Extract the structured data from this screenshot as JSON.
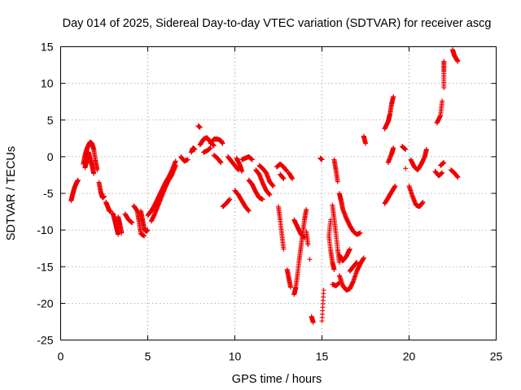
{
  "chart_data": {
    "type": "scatter",
    "title": "Day 014 of 2025, Sidereal Day-to-day VTEC variation (SDTVAR) for receiver ascg",
    "xlabel": "GPS time / hours",
    "ylabel": "SDTVAR / TECUs",
    "xlim": [
      0,
      25
    ],
    "ylim": [
      -25,
      15
    ],
    "xticks": [
      0,
      5,
      10,
      15,
      20,
      25
    ],
    "yticks": [
      -25,
      -20,
      -15,
      -10,
      -5,
      0,
      5,
      10,
      15
    ],
    "grid": true,
    "marker": "+",
    "color": "#ee0000",
    "segments": [
      [
        [
          0.6,
          -6.0
        ],
        [
          0.7,
          -5.0
        ],
        [
          0.8,
          -4.2
        ],
        [
          0.9,
          -3.6
        ],
        [
          1.0,
          -3.2
        ]
      ],
      [
        [
          1.3,
          -1.0
        ],
        [
          1.4,
          0.2
        ],
        [
          1.5,
          1.0
        ],
        [
          1.6,
          1.6
        ],
        [
          1.7,
          2.0
        ],
        [
          1.8,
          1.8
        ],
        [
          1.9,
          1.0
        ],
        [
          2.0,
          -0.5
        ],
        [
          2.1,
          -1.8
        ]
      ],
      [
        [
          1.4,
          -1.5
        ],
        [
          1.5,
          -0.5
        ],
        [
          1.6,
          0.6
        ],
        [
          1.7,
          -0.4
        ],
        [
          1.8,
          -1.2
        ],
        [
          1.9,
          -2.3
        ]
      ],
      [
        [
          2.2,
          -3.5
        ],
        [
          2.3,
          -4.8
        ],
        [
          2.4,
          -5.6
        ],
        [
          2.5,
          -5.4
        ]
      ],
      [
        [
          2.6,
          -6.2
        ],
        [
          2.7,
          -6.8
        ],
        [
          2.8,
          -7.4
        ],
        [
          2.9,
          -7.5
        ]
      ],
      [
        [
          3.0,
          -7.7
        ],
        [
          3.1,
          -8.6
        ],
        [
          3.2,
          -9.6
        ],
        [
          3.3,
          -10.6
        ]
      ],
      [
        [
          3.3,
          -8.2
        ],
        [
          3.4,
          -9.2
        ],
        [
          3.5,
          -10.4
        ]
      ],
      [
        [
          3.7,
          -7.8
        ],
        [
          3.9,
          -8.6
        ],
        [
          4.1,
          -9.0
        ]
      ],
      [
        [
          4.2,
          -6.7
        ],
        [
          4.4,
          -7.4
        ],
        [
          4.5,
          -8.8
        ],
        [
          4.6,
          -10.5
        ],
        [
          4.8,
          -10.8
        ]
      ],
      [
        [
          4.6,
          -7.4
        ],
        [
          4.7,
          -8.6
        ],
        [
          4.8,
          -9.8
        ],
        [
          4.9,
          -10.2
        ],
        [
          5.0,
          -10.0
        ]
      ],
      [
        [
          5.0,
          -8.0
        ],
        [
          5.2,
          -7.4
        ],
        [
          5.4,
          -6.6
        ],
        [
          5.6,
          -5.6
        ],
        [
          5.8,
          -4.6
        ],
        [
          6.0,
          -3.6
        ],
        [
          6.2,
          -2.8
        ],
        [
          6.4,
          -1.8
        ],
        [
          6.6,
          -0.6
        ]
      ],
      [
        [
          5.2,
          -8.8
        ],
        [
          5.4,
          -7.8
        ],
        [
          5.6,
          -6.6
        ],
        [
          5.8,
          -5.4
        ],
        [
          6.0,
          -4.2
        ],
        [
          6.2,
          -3.2
        ],
        [
          6.4,
          -2.4
        ],
        [
          6.6,
          -1.2
        ]
      ],
      [
        [
          6.9,
          0.0
        ],
        [
          7.1,
          -0.6
        ],
        [
          7.3,
          -0.4
        ]
      ],
      [
        [
          7.5,
          0.6
        ],
        [
          7.6,
          1.2
        ],
        [
          7.7,
          1.0
        ]
      ],
      [
        [
          7.9,
          4.2
        ],
        [
          8.0,
          4.0
        ]
      ],
      [
        [
          8.0,
          1.6
        ],
        [
          8.2,
          2.4
        ],
        [
          8.4,
          2.6
        ],
        [
          8.6,
          2.0
        ],
        [
          8.8,
          1.5
        ]
      ],
      [
        [
          8.2,
          0.6
        ],
        [
          8.4,
          0.8
        ],
        [
          8.6,
          1.2
        ]
      ],
      [
        [
          8.6,
          1.8
        ],
        [
          8.8,
          2.4
        ],
        [
          9.0,
          2.4
        ],
        [
          9.2,
          2.2
        ],
        [
          9.3,
          1.8
        ]
      ],
      [
        [
          8.8,
          0.2
        ],
        [
          9.0,
          -0.2
        ],
        [
          9.2,
          -0.8
        ]
      ],
      [
        [
          9.3,
          -6.8
        ],
        [
          9.5,
          -6.4
        ],
        [
          9.7,
          -5.8
        ]
      ],
      [
        [
          9.6,
          0.0
        ],
        [
          9.8,
          -0.6
        ],
        [
          10.0,
          -1.2
        ],
        [
          10.2,
          -1.8
        ]
      ],
      [
        [
          10.0,
          -4.6
        ],
        [
          10.2,
          -5.2
        ],
        [
          10.4,
          -6.0
        ],
        [
          10.6,
          -6.8
        ],
        [
          10.8,
          -7.4
        ]
      ],
      [
        [
          10.1,
          -0.2
        ],
        [
          10.3,
          -1.2
        ],
        [
          10.4,
          -2.0
        ]
      ],
      [
        [
          10.4,
          -0.4
        ],
        [
          10.6,
          -0.2
        ],
        [
          10.8,
          0.0
        ],
        [
          11.0,
          -0.4
        ]
      ],
      [
        [
          10.8,
          -3.2
        ],
        [
          11.0,
          -3.8
        ],
        [
          11.2,
          -4.8
        ],
        [
          11.4,
          -5.6
        ],
        [
          11.6,
          -5.8
        ]
      ],
      [
        [
          11.2,
          -1.8
        ],
        [
          11.4,
          -2.4
        ],
        [
          11.6,
          -3.6
        ],
        [
          11.8,
          -4.6
        ],
        [
          12.0,
          -5.2
        ]
      ],
      [
        [
          11.4,
          -1.2
        ],
        [
          11.6,
          -1.6
        ],
        [
          11.8,
          -2.2
        ],
        [
          12.0,
          -3.4
        ],
        [
          12.2,
          -4.0
        ]
      ],
      [
        [
          12.4,
          -1.4
        ],
        [
          12.6,
          -1.0
        ],
        [
          12.8,
          -1.4
        ],
        [
          13.0,
          -2.0
        ]
      ],
      [
        [
          12.6,
          -2.4
        ],
        [
          12.8,
          -3.0
        ]
      ],
      [
        [
          12.5,
          -6.8
        ],
        [
          12.6,
          -8.6
        ],
        [
          12.7,
          -10.6
        ],
        [
          12.8,
          -12.6
        ]
      ],
      [
        [
          13.0,
          -15.4
        ],
        [
          13.1,
          -16.6
        ],
        [
          13.2,
          -17.8
        ]
      ],
      [
        [
          13.1,
          -2.2
        ],
        [
          13.3,
          -3.0
        ]
      ],
      [
        [
          13.4,
          -8.6
        ],
        [
          13.6,
          -9.6
        ],
        [
          13.8,
          -10.6
        ],
        [
          14.0,
          -11.0
        ]
      ],
      [
        [
          13.4,
          -18.8
        ],
        [
          13.5,
          -17.8
        ],
        [
          13.6,
          -16.0
        ],
        [
          13.7,
          -14.0
        ],
        [
          13.8,
          -12.2
        ],
        [
          13.9,
          -10.4
        ],
        [
          14.0,
          -8.6
        ],
        [
          14.1,
          -7.2
        ]
      ],
      [
        [
          14.1,
          -10.2
        ],
        [
          14.2,
          -12.0
        ]
      ],
      [
        [
          14.3,
          -14.0
        ]
      ],
      [
        [
          14.4,
          -21.8
        ],
        [
          14.5,
          -22.6
        ]
      ],
      [
        [
          14.9,
          -0.2
        ],
        [
          15.0,
          -0.4
        ]
      ],
      [
        [
          15.0,
          -22.4
        ],
        [
          15.1,
          -18.2
        ]
      ],
      [
        [
          15.5,
          -8.6
        ],
        [
          15.4,
          -10.8
        ],
        [
          15.5,
          -12.8
        ],
        [
          15.6,
          -14.4
        ],
        [
          15.7,
          -15.4
        ]
      ],
      [
        [
          15.6,
          -6.6
        ],
        [
          15.7,
          -8.4
        ],
        [
          15.8,
          -10.4
        ],
        [
          15.9,
          -12.6
        ],
        [
          16.0,
          -14.4
        ]
      ],
      [
        [
          15.7,
          -0.4
        ],
        [
          15.8,
          -1.8
        ],
        [
          15.9,
          -3.4
        ]
      ],
      [
        [
          15.6,
          -17.4
        ],
        [
          15.8,
          -17.6
        ],
        [
          16.0,
          -17.2
        ]
      ],
      [
        [
          16.0,
          -5.0
        ],
        [
          16.1,
          -6.0
        ],
        [
          16.2,
          -7.2
        ],
        [
          16.4,
          -8.4
        ],
        [
          16.6,
          -9.4
        ],
        [
          16.8,
          -10.2
        ],
        [
          17.0,
          -10.6
        ],
        [
          17.2,
          -10.4
        ]
      ],
      [
        [
          16.0,
          -13.4
        ],
        [
          16.2,
          -14.2
        ],
        [
          16.4,
          -13.6
        ],
        [
          16.6,
          -12.6
        ]
      ],
      [
        [
          16.0,
          -16.2
        ],
        [
          16.2,
          -17.6
        ],
        [
          16.4,
          -18.2
        ],
        [
          16.6,
          -18.0
        ],
        [
          16.8,
          -17.0
        ],
        [
          17.0,
          -15.6
        ],
        [
          17.2,
          -14.6
        ],
        [
          17.4,
          -13.8
        ]
      ],
      [
        [
          16.6,
          -15.6
        ],
        [
          16.8,
          -15.0
        ],
        [
          17.0,
          -14.4
        ]
      ],
      [
        [
          17.4,
          2.8
        ],
        [
          17.5,
          1.8
        ]
      ],
      [
        [
          18.6,
          -6.4
        ],
        [
          18.8,
          -5.6
        ],
        [
          19.0,
          -4.8
        ],
        [
          19.2,
          -4.0
        ]
      ],
      [
        [
          18.6,
          3.8
        ],
        [
          18.8,
          4.8
        ],
        [
          18.9,
          5.8
        ],
        [
          19.0,
          7.2
        ],
        [
          19.1,
          8.2
        ]
      ],
      [
        [
          18.8,
          -0.8
        ],
        [
          19.0,
          0.4
        ],
        [
          19.1,
          1.2
        ]
      ],
      [
        [
          19.6,
          1.4
        ],
        [
          19.8,
          1.0
        ]
      ],
      [
        [
          19.8,
          -1.6
        ]
      ],
      [
        [
          20.1,
          -0.4
        ],
        [
          20.3,
          -1.4
        ],
        [
          20.5,
          -1.8
        ],
        [
          20.7,
          -1.0
        ],
        [
          20.9,
          0.0
        ],
        [
          21.0,
          1.0
        ]
      ],
      [
        [
          20.0,
          -4.0
        ],
        [
          20.2,
          -5.4
        ],
        [
          20.4,
          -6.6
        ],
        [
          20.6,
          -6.8
        ],
        [
          20.8,
          -6.2
        ]
      ],
      [
        [
          21.5,
          -2.0
        ],
        [
          21.7,
          -2.6
        ],
        [
          21.9,
          -2.2
        ]
      ],
      [
        [
          21.6,
          4.6
        ],
        [
          21.8,
          5.6
        ],
        [
          21.9,
          7.6
        ]
      ],
      [
        [
          22.0,
          9.4
        ],
        [
          22.0,
          11.6
        ],
        [
          22.0,
          13.0
        ]
      ],
      [
        [
          21.8,
          -1.2
        ],
        [
          22.0,
          -0.8
        ]
      ],
      [
        [
          22.4,
          -1.8
        ],
        [
          22.6,
          -2.2
        ],
        [
          22.8,
          -2.8
        ]
      ],
      [
        [
          22.5,
          14.6
        ],
        [
          22.6,
          13.8
        ],
        [
          22.7,
          13.4
        ],
        [
          22.8,
          13.0
        ]
      ]
    ]
  }
}
